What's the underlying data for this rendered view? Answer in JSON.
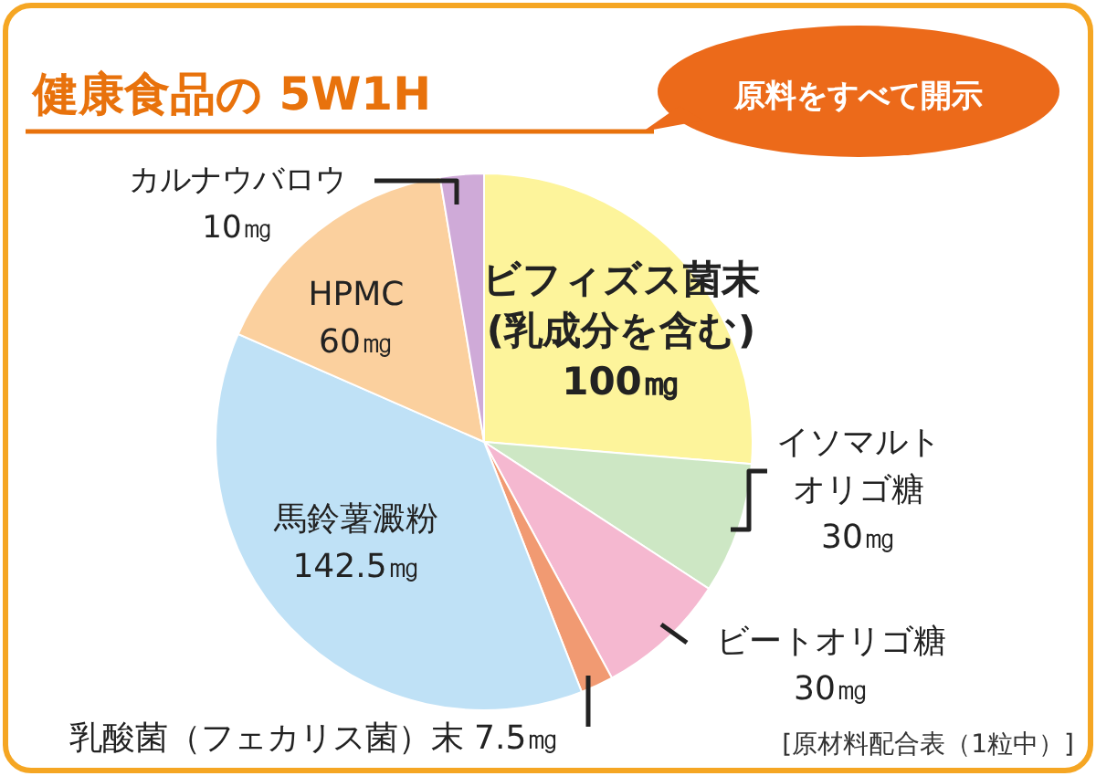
{
  "chart_data": {
    "type": "pie",
    "title": "健康食品の 5W1H",
    "categories": [
      "ビフィズス菌末(乳成分を含む)",
      "イソマルトオリゴ糖",
      "ビートオリゴ糖",
      "乳酸菌（フェカリス菌）末",
      "馬鈴薯澱粉",
      "HPMC",
      "カルナウバロウ"
    ],
    "values": [
      100,
      30,
      30,
      7.5,
      142.5,
      60,
      10
    ],
    "value_labels": [
      "100㎎",
      "30㎎",
      "30㎎",
      "7.5㎎",
      "142.5㎎",
      "60㎎",
      "10㎎"
    ],
    "colors": [
      "#fdf49b",
      "#cde7c4",
      "#f5b8d0",
      "#f19a72",
      "#bfe1f6",
      "#fbd09e",
      "#cfaad8"
    ],
    "annotations": [
      "原料をすべて開示",
      "[原材料配合表（1粒中）]"
    ]
  }
}
